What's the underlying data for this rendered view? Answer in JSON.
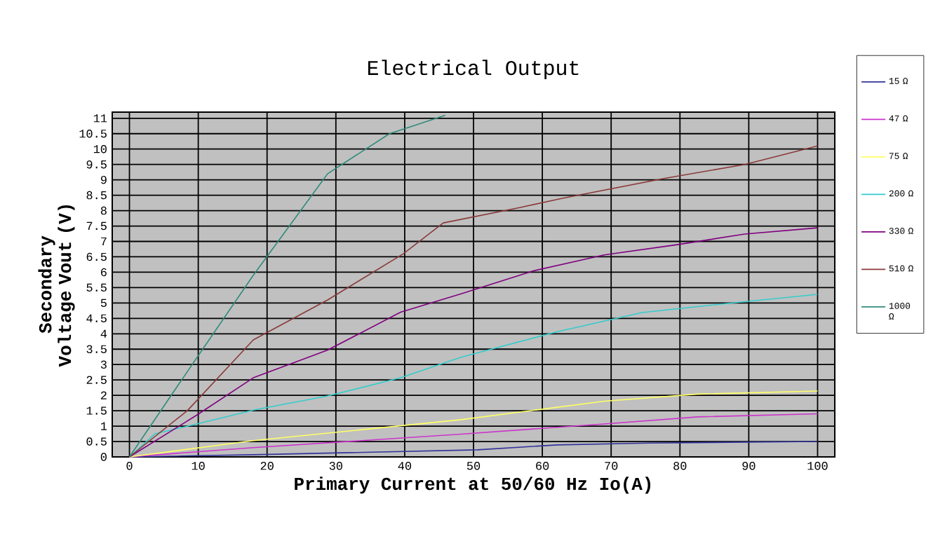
{
  "chart_data": {
    "type": "line",
    "title": "Electrical Output",
    "xlabel": "Primary Current at 50/60 Hz Io(A)",
    "ylabel": "Secondary Voltage Vout (V)",
    "xlim": [
      -2.5,
      102.5
    ],
    "ylim": [
      0,
      11.2
    ],
    "xticks": [
      0,
      10,
      20,
      30,
      40,
      50,
      60,
      70,
      80,
      90,
      100
    ],
    "yticks": [
      0,
      0.5,
      1,
      1.5,
      2,
      2.5,
      3,
      3.5,
      4,
      4.5,
      5,
      5.5,
      6,
      6.5,
      7,
      7.5,
      8,
      8.5,
      9,
      9.5,
      10,
      10.5,
      11
    ],
    "grid": true,
    "legend": "right",
    "marker": "none",
    "line_style": "solid",
    "series": [
      {
        "name": "15 Ω",
        "color": "#333399",
        "x": [
          0,
          18,
          50.6,
          62.2,
          75.5,
          100
        ],
        "values": [
          0,
          0.07,
          0.23,
          0.39,
          0.45,
          0.5
        ]
      },
      {
        "name": "47 Ω",
        "color": "#cc33cc",
        "x": [
          0,
          18,
          48.2,
          69,
          82.6,
          100
        ],
        "values": [
          0,
          0.3,
          0.74,
          1.07,
          1.3,
          1.4
        ]
      },
      {
        "name": "75 Ω",
        "color": "#ffff66",
        "x": [
          0,
          18,
          48.2,
          69,
          82.6,
          100
        ],
        "values": [
          0,
          0.53,
          1.21,
          1.81,
          2.04,
          2.14
        ]
      },
      {
        "name": "200 Ω",
        "color": "#33cccc",
        "x": [
          0,
          3.7,
          9.8,
          18,
          28.8,
          39.4,
          48.2,
          62.2,
          74.5,
          86.7,
          100
        ],
        "values": [
          0,
          0.75,
          1.07,
          1.52,
          1.98,
          2.57,
          3.24,
          4.07,
          4.69,
          4.98,
          5.28
        ]
      },
      {
        "name": "330 Ω",
        "color": "#800080",
        "x": [
          0,
          9.8,
          18,
          28.8,
          39.4,
          48.2,
          58.8,
          69,
          79.8,
          89.4,
          100
        ],
        "values": [
          0,
          1.36,
          2.57,
          3.47,
          4.7,
          5.3,
          6.05,
          6.56,
          6.9,
          7.24,
          7.44
        ]
      },
      {
        "name": "510 Ω",
        "color": "#8b3a3a",
        "x": [
          0,
          8.4,
          18,
          28.8,
          39.8,
          45.6,
          56.7,
          62.9,
          77.8,
          89.4,
          100
        ],
        "values": [
          0,
          1.5,
          3.8,
          5.1,
          6.6,
          7.6,
          8.1,
          8.4,
          9.05,
          9.5,
          10.1
        ]
      },
      {
        "name": "1000 Ω",
        "color": "#2e8b7a",
        "x": [
          0,
          7.8,
          18,
          28.8,
          37.8,
          45.9
        ],
        "values": [
          0,
          2.57,
          5.9,
          9.2,
          10.5,
          11.1
        ]
      }
    ]
  }
}
